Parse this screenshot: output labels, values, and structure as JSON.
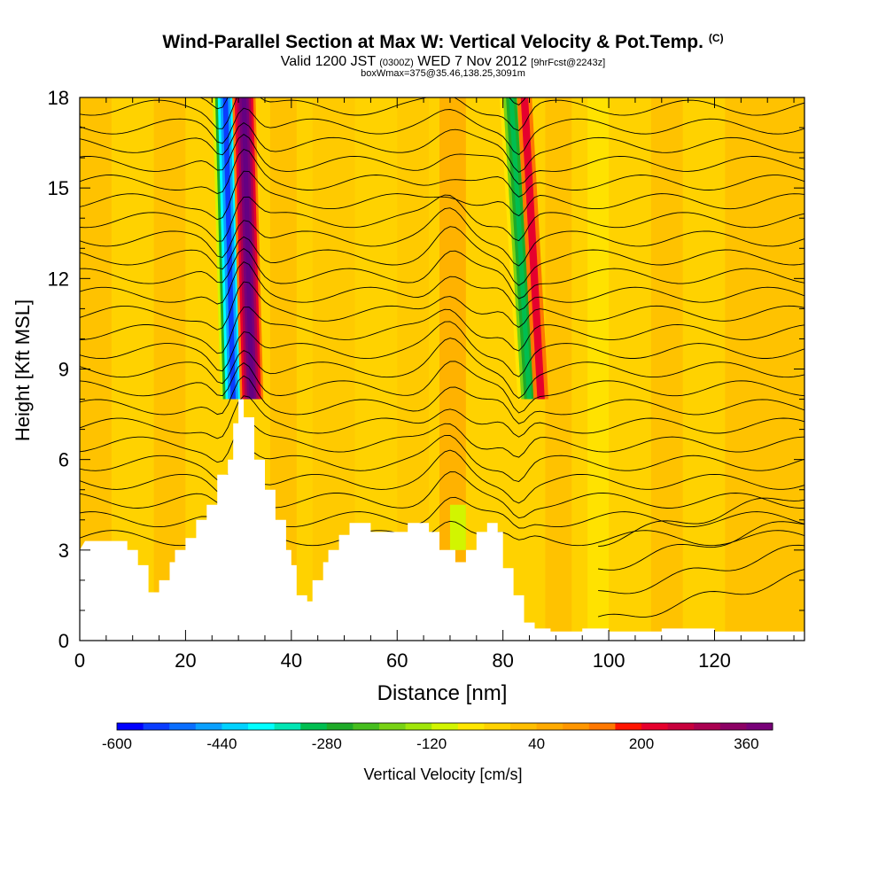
{
  "header": {
    "title": "Wind-Parallel Section at Max W: Vertical Velocity & Pot.Temp.",
    "copyright": "(C)",
    "valid_prefix": "Valid 1200 JST",
    "valid_utc": "(0300Z)",
    "valid_date": "WED 7 Nov 2012",
    "forecast": "[9hrFcst@2243z]",
    "box_info": "boxWmax=375@35.46,138.25,3091m"
  },
  "chart_data": {
    "type": "heatmap",
    "title": "Wind-Parallel Section at Max W: Vertical Velocity & Pot.Temp.",
    "xlabel": "Distance [nm]",
    "ylabel": "Height [Kft MSL]",
    "xlim": [
      0,
      137
    ],
    "ylim": [
      0,
      18
    ],
    "x_ticks": [
      0,
      20,
      40,
      60,
      80,
      100,
      120
    ],
    "y_ticks": [
      0,
      3,
      6,
      9,
      12,
      15,
      18
    ],
    "colorbar": {
      "label": "Vertical Velocity [cm/s]",
      "min": -600,
      "max": 400,
      "step": 40,
      "tick_labels": [
        -600,
        -440,
        -280,
        -120,
        40,
        200,
        360
      ],
      "colors": [
        "#0000ff",
        "#0a3cff",
        "#0a6eff",
        "#0aa0ff",
        "#00d2ff",
        "#00ffff",
        "#00e6b4",
        "#00d282",
        "#00be50",
        "#1eaa28",
        "#46be1e",
        "#78d214",
        "#a0e60a",
        "#d2f500",
        "#ffff00",
        "#ffe600",
        "#ffd200",
        "#ffbe00",
        "#ffaa00",
        "#ff9600",
        "#ff7800",
        "#ff5000",
        "#ff1400",
        "#e6002d",
        "#c8003c",
        "#aa0050",
        "#8c0064",
        "#780078",
        "#640082"
      ]
    },
    "updrafts_and_downdrafts": [
      {
        "center_x_nm": 29,
        "min_w_cms": -500,
        "kind": "downdraft"
      },
      {
        "center_x_nm": 32.5,
        "max_w_cms": 375,
        "kind": "updraft"
      },
      {
        "center_x_nm": 82.5,
        "min_w_cms": -300,
        "kind": "downdraft"
      }
    ],
    "terrain_kft": {
      "x": [
        0,
        1,
        9,
        9,
        11,
        11,
        13,
        13,
        15,
        15,
        17,
        17,
        18,
        18,
        20,
        20,
        22,
        22,
        24,
        24,
        26,
        26,
        28,
        28,
        29,
        29,
        30,
        30,
        31,
        31,
        33,
        33,
        35,
        35,
        37,
        37,
        39,
        39,
        40,
        40,
        41,
        41,
        43,
        43,
        44,
        44,
        46,
        46,
        47,
        47,
        49,
        49,
        51,
        51,
        55,
        55,
        62,
        62,
        66,
        66,
        68,
        68,
        71,
        71,
        73,
        73,
        75,
        75,
        77,
        77,
        79,
        79,
        80,
        80,
        82,
        82,
        84,
        84,
        86,
        86,
        89,
        89,
        95,
        95,
        100,
        100,
        110,
        110,
        120,
        120,
        130,
        130,
        137
      ],
      "y": [
        3.0,
        3.3,
        3.3,
        3.0,
        3.0,
        2.5,
        2.5,
        1.6,
        1.6,
        2.0,
        2.0,
        2.6,
        2.6,
        3.0,
        3.0,
        3.4,
        3.4,
        4.0,
        4.0,
        4.5,
        4.5,
        5.5,
        5.5,
        6.0,
        6.0,
        7.2,
        7.2,
        8.0,
        8.0,
        7.4,
        7.4,
        6.0,
        6.0,
        5.0,
        5.0,
        4.0,
        4.0,
        3.0,
        3.0,
        2.5,
        2.5,
        1.5,
        1.5,
        1.3,
        1.3,
        2.0,
        2.0,
        2.6,
        2.6,
        3.0,
        3.0,
        3.5,
        3.5,
        3.9,
        3.9,
        3.6,
        3.6,
        3.9,
        3.9,
        3.6,
        3.6,
        3.0,
        3.0,
        2.6,
        2.6,
        3.0,
        3.0,
        3.6,
        3.6,
        3.9,
        3.9,
        3.6,
        3.6,
        2.4,
        2.4,
        1.5,
        1.5,
        0.6,
        0.6,
        0.4,
        0.4,
        0.3,
        0.3,
        0.4,
        0.4,
        0.3,
        0.3,
        0.4,
        0.4,
        0.3,
        0.3,
        0.3,
        0.3
      ]
    },
    "contours": "potential temperature isentropes, black lines every ~0.6 kft"
  }
}
